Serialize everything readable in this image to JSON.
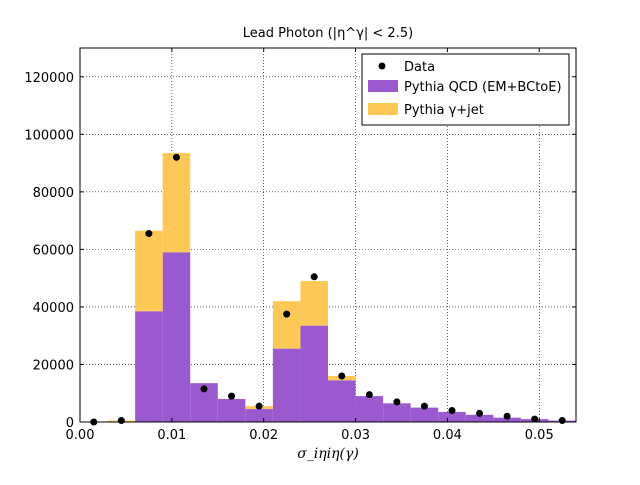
{
  "chart_data": {
    "type": "bar",
    "title": "Lead Photon (|η^γ| < 2.5)",
    "xlabel": "σ_iηiη(γ)",
    "ylabel": "",
    "xlim": [
      0.0,
      0.054
    ],
    "ylim": [
      0,
      130000
    ],
    "grid": true,
    "legend_position": "top-right",
    "xticks": [
      "0.00",
      "0.01",
      "0.02",
      "0.03",
      "0.04",
      "0.05"
    ],
    "yticks": [
      "0",
      "20000",
      "40000",
      "60000",
      "80000",
      "100000",
      "120000"
    ],
    "bin_edges": [
      0.0,
      0.003,
      0.006,
      0.009,
      0.012,
      0.015,
      0.018,
      0.021,
      0.024,
      0.027,
      0.03,
      0.033,
      0.036,
      0.039,
      0.042,
      0.045,
      0.048,
      0.051,
      0.054
    ],
    "series": [
      {
        "name": "Pythia QCD (EM+BCtoE)",
        "kind": "stacked-bar",
        "color": "#9b59d0",
        "values": [
          0,
          0,
          38500,
          59000,
          13500,
          8000,
          4500,
          25500,
          33500,
          14500,
          9000,
          6500,
          5000,
          3500,
          2500,
          1500,
          1000,
          500
        ]
      },
      {
        "name": "Pythia γ+jet",
        "kind": "stacked-bar",
        "color": "#fec856",
        "values": [
          0,
          500,
          28000,
          34500,
          0,
          0,
          1000,
          16500,
          15500,
          1500,
          0,
          0,
          0,
          0,
          0,
          0,
          0,
          0
        ]
      },
      {
        "name": "Data",
        "kind": "points",
        "color": "#000000",
        "x": [
          0.0015,
          0.0045,
          0.0075,
          0.0105,
          0.0135,
          0.0165,
          0.0195,
          0.0225,
          0.0255,
          0.0285,
          0.0315,
          0.0345,
          0.0375,
          0.0405,
          0.0435,
          0.0465,
          0.0495,
          0.0525
        ],
        "values": [
          0,
          500,
          65500,
          92000,
          11500,
          9000,
          5500,
          37500,
          50500,
          16000,
          9500,
          7000,
          5500,
          4000,
          3000,
          2000,
          1000,
          500
        ]
      }
    ],
    "legend": [
      {
        "label": "Data",
        "symbol": "point",
        "color": "#000000"
      },
      {
        "label": "Pythia QCD (EM+BCtoE)",
        "symbol": "patch",
        "color": "#9b59d0"
      },
      {
        "label": "Pythia γ+jet",
        "symbol": "patch",
        "color": "#fec856"
      }
    ]
  }
}
